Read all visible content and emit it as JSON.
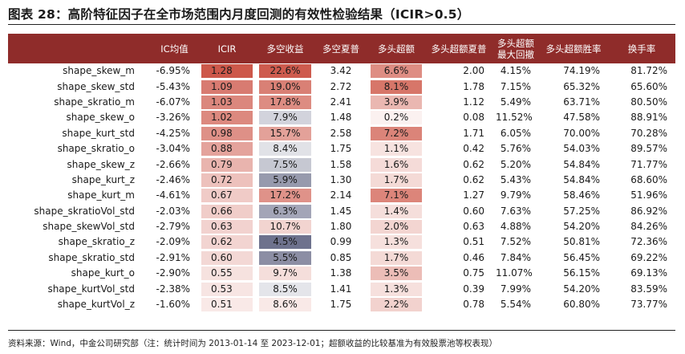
{
  "title": "图表 28：高阶特征因子在全市场范围内月度回测的有效性检验结果（ICIR>0.5）",
  "columns": [
    "",
    "IC均值",
    "ICIR",
    "多空收益",
    "多空夏普",
    "多头超额",
    "多头超额夏普",
    "多头超额\n最大回撤",
    "多头超额胜率",
    "换手率"
  ],
  "rows": [
    [
      "shape_skew_m",
      "-6.95%",
      "1.28",
      "22.6%",
      "3.42",
      "6.6%",
      "2.00",
      "4.15%",
      "74.19%",
      "81.72%"
    ],
    [
      "shape_skew_std",
      "-5.43%",
      "1.09",
      "19.0%",
      "2.72",
      "8.1%",
      "1.78",
      "7.15%",
      "65.32%",
      "65.60%"
    ],
    [
      "shape_skratio_m",
      "-6.07%",
      "1.03",
      "17.8%",
      "2.41",
      "3.9%",
      "1.12",
      "5.49%",
      "63.71%",
      "80.50%"
    ],
    [
      "shape_skew_o",
      "-3.26%",
      "1.02",
      "7.9%",
      "1.48",
      "0.2%",
      "0.08",
      "11.52%",
      "47.58%",
      "88.91%"
    ],
    [
      "shape_kurt_std",
      "-4.25%",
      "0.98",
      "15.7%",
      "2.58",
      "7.2%",
      "1.71",
      "6.05%",
      "70.00%",
      "70.28%"
    ],
    [
      "shape_skratio_o",
      "-3.04%",
      "0.88",
      "8.4%",
      "1.75",
      "1.1%",
      "0.42",
      "5.76%",
      "54.03%",
      "89.57%"
    ],
    [
      "shape_skew_z",
      "-2.66%",
      "0.79",
      "7.5%",
      "1.58",
      "1.6%",
      "0.62",
      "5.20%",
      "54.84%",
      "71.77%"
    ],
    [
      "shape_kurt_z",
      "-2.46%",
      "0.72",
      "5.9%",
      "1.30",
      "1.7%",
      "0.62",
      "5.43%",
      "54.84%",
      "68.60%"
    ],
    [
      "shape_kurt_m",
      "-4.61%",
      "0.67",
      "17.2%",
      "2.14",
      "7.1%",
      "1.27",
      "9.79%",
      "58.46%",
      "51.96%"
    ],
    [
      "shape_skratioVol_std",
      "-2.03%",
      "0.66",
      "6.3%",
      "1.45",
      "1.4%",
      "0.60",
      "7.63%",
      "57.25%",
      "86.92%"
    ],
    [
      "shape_skewVol_std",
      "-2.79%",
      "0.63",
      "10.7%",
      "1.80",
      "2.0%",
      "0.63",
      "4.88%",
      "54.20%",
      "84.26%"
    ],
    [
      "shape_skratio_z",
      "-2.09%",
      "0.62",
      "4.5%",
      "0.99",
      "1.3%",
      "0.51",
      "7.52%",
      "50.81%",
      "72.36%"
    ],
    [
      "shape_skratio_std",
      "-2.91%",
      "0.60",
      "5.5%",
      "0.85",
      "1.7%",
      "0.46",
      "7.84%",
      "56.45%",
      "69.22%"
    ],
    [
      "shape_kurt_o",
      "-2.90%",
      "0.55",
      "9.7%",
      "1.38",
      "3.5%",
      "0.75",
      "11.07%",
      "56.15%",
      "69.13%"
    ],
    [
      "shape_kurtVol_std",
      "-2.38%",
      "0.53",
      "8.5%",
      "1.41",
      "1.3%",
      "0.39",
      "7.99%",
      "54.20%",
      "83.59%"
    ],
    [
      "shape_kurtVol_z",
      "-1.60%",
      "0.51",
      "8.6%",
      "1.75",
      "2.2%",
      "0.78",
      "5.54%",
      "60.80%",
      "73.77%"
    ]
  ],
  "heat": {
    "icir_color": "#c9493a",
    "ls_high_color": "#c9493a",
    "ls_low_color": "#5e6280",
    "ex_color": "#cc4f3f"
  },
  "source": "资料来源：Wind，中金公司研究部（注：统计时间为 2013-01-14 至 2023-12-01；超额收益的比较基准为有效股票池等权表现）"
}
